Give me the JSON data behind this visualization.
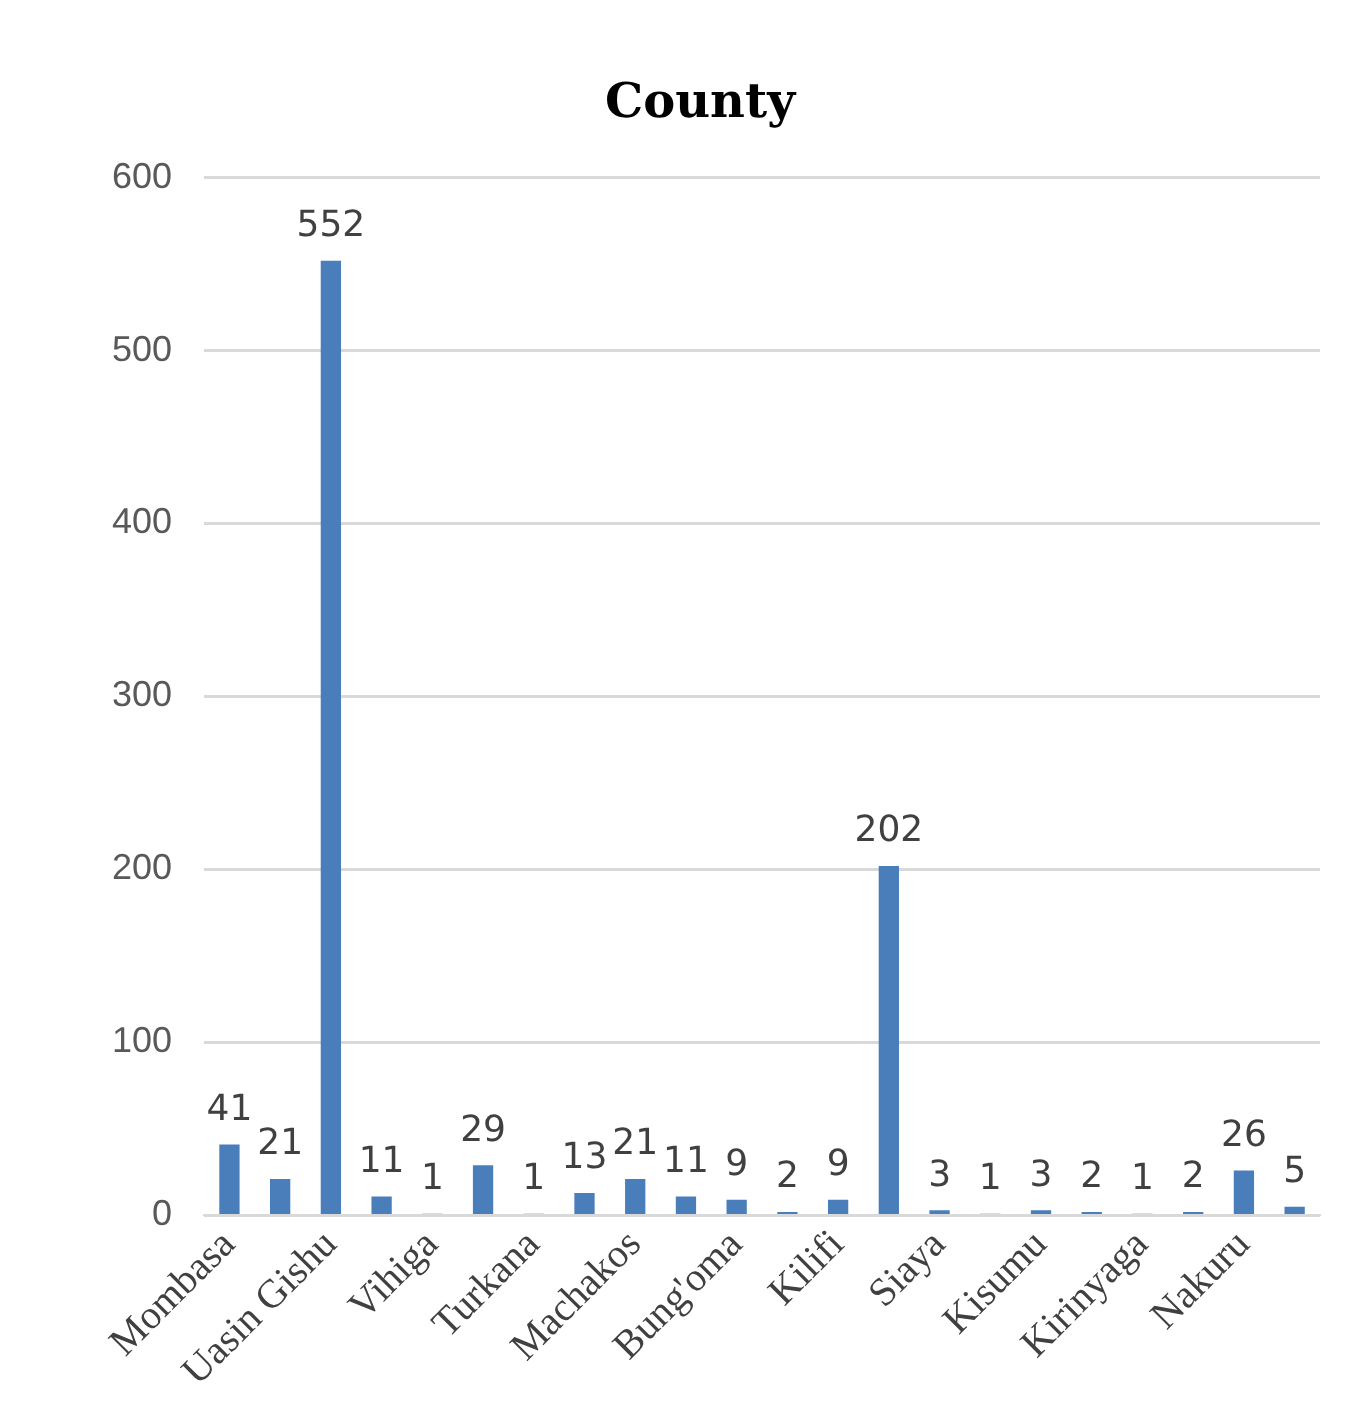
{
  "chart_data": {
    "type": "bar",
    "title": "County",
    "categories": [
      "Mombasa",
      null,
      "Uasin Gishu",
      null,
      "Vihiga",
      null,
      "Turkana",
      null,
      "Machakos",
      null,
      "Bung'oma",
      null,
      "Kilifi",
      null,
      "Siaya",
      null,
      "Kisumu",
      null,
      "Kirinyaga",
      null,
      "Nakuru",
      null
    ],
    "values": [
      41,
      21,
      552,
      11,
      1,
      29,
      1,
      13,
      21,
      11,
      9,
      2,
      9,
      202,
      3,
      1,
      3,
      2,
      1,
      2,
      26,
      5
    ],
    "color": "#4a7ebb",
    "ylim": [
      0,
      600
    ],
    "yticks": [
      0,
      100,
      200,
      300,
      400,
      500,
      600
    ],
    "grid": "y",
    "data_labels": true,
    "legend": false
  }
}
